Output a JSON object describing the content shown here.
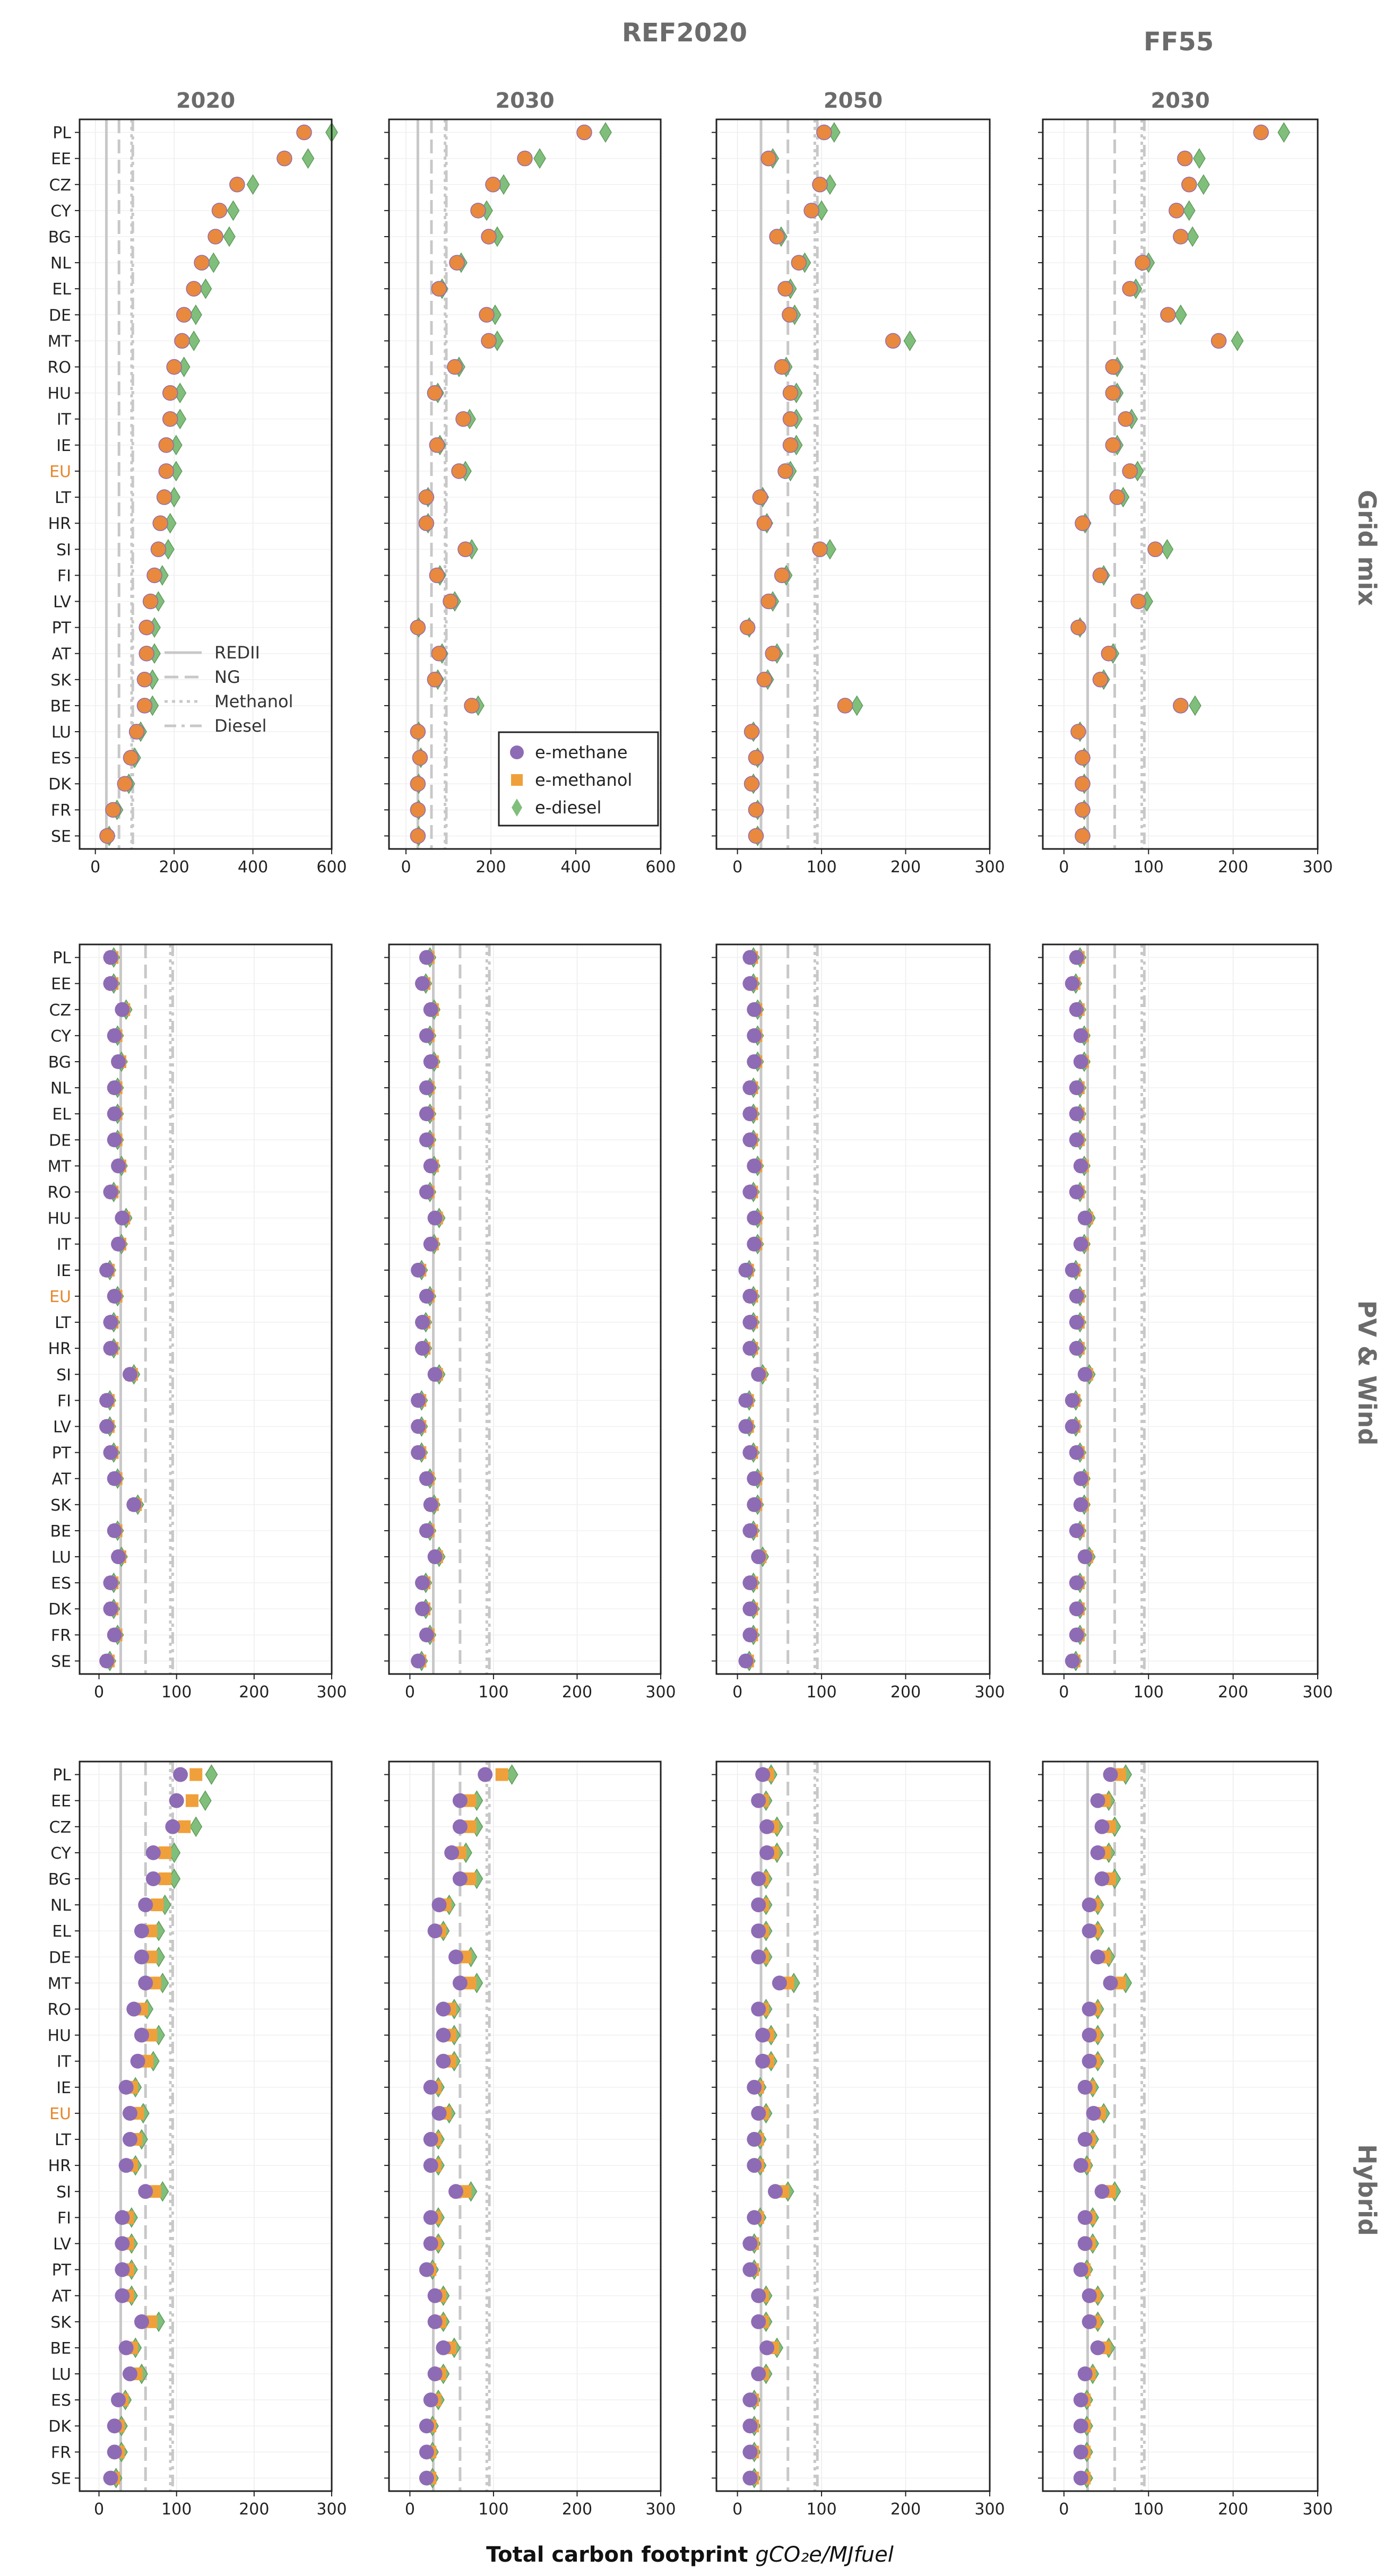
{
  "figure": {
    "scenario_labels": [
      "REF2020",
      "FF55"
    ],
    "year_labels": [
      "2020",
      "2030",
      "2050",
      "2030"
    ],
    "row_labels": [
      "Grid mix",
      "PV & Wind",
      "Hybrid"
    ],
    "xlabel": "Total carbon footprint",
    "xlabel_unit": "gCO₂e/MJfuel",
    "colors": {
      "e_methane": "#8e6bb5",
      "e_methanol": "#f0a03a",
      "e_diesel": "#7fbf7b",
      "orange_dot": "#e8893e",
      "eu_label": "#e8862a",
      "ref_lines": "#c8c8c8"
    }
  },
  "chart_data": {
    "type": "scatter",
    "countries": [
      "PL",
      "EE",
      "CZ",
      "CY",
      "BG",
      "NL",
      "EL",
      "DE",
      "MT",
      "RO",
      "HU",
      "IT",
      "IE",
      "EU",
      "LT",
      "HR",
      "SI",
      "FI",
      "LV",
      "PT",
      "AT",
      "SK",
      "BE",
      "LU",
      "ES",
      "DK",
      "FR",
      "SE"
    ],
    "series_names": [
      "e-methane",
      "e-methanol",
      "e-diesel"
    ],
    "reference_lines": [
      {
        "name": "REDII",
        "value": 28,
        "style": "solid"
      },
      {
        "name": "NG",
        "value": 60,
        "style": "dashed"
      },
      {
        "name": "Methanol",
        "value": 92,
        "style": "dotted"
      },
      {
        "name": "Diesel",
        "value": 95,
        "style": "dashdot"
      }
    ],
    "legend_lines": [
      "REDII",
      "NG",
      "Methanol",
      "Diesel"
    ],
    "legend_markers": [
      "e-methane",
      "e-methanol",
      "e-diesel"
    ],
    "panels": [
      {
        "row": "Grid mix",
        "col": "2020",
        "xlim": [
          -40,
          600
        ],
        "xticks": [
          0,
          200,
          400,
          600
        ],
        "methane": [
          525,
          475,
          355,
          310,
          300,
          265,
          245,
          220,
          215,
          195,
          185,
          185,
          175,
          175,
          170,
          160,
          155,
          145,
          135,
          125,
          125,
          120,
          120,
          100,
          85,
          70,
          40,
          25
        ],
        "methanol": [
          530,
          480,
          360,
          315,
          305,
          270,
          250,
          225,
          220,
          200,
          190,
          190,
          180,
          180,
          175,
          165,
          160,
          150,
          140,
          130,
          130,
          125,
          125,
          105,
          90,
          75,
          45,
          30
        ],
        "diesel": [
          600,
          540,
          400,
          350,
          340,
          300,
          280,
          255,
          250,
          225,
          215,
          215,
          205,
          205,
          200,
          190,
          185,
          170,
          160,
          150,
          150,
          145,
          145,
          115,
          100,
          85,
          55,
          35
        ]
      },
      {
        "row": "Grid mix",
        "col": "2030",
        "xlim": [
          -40,
          600
        ],
        "xticks": [
          0,
          200,
          400,
          600
        ],
        "methane": [
          415,
          275,
          200,
          165,
          190,
          115,
          75,
          185,
          190,
          110,
          65,
          130,
          70,
          120,
          45,
          45,
          135,
          70,
          100,
          25,
          75,
          65,
          150,
          25,
          30,
          25,
          25,
          25
        ],
        "methanol": [
          420,
          280,
          205,
          170,
          195,
          120,
          78,
          190,
          195,
          115,
          68,
          135,
          73,
          125,
          48,
          48,
          140,
          73,
          105,
          28,
          78,
          68,
          155,
          28,
          33,
          28,
          28,
          28
        ],
        "diesel": [
          470,
          315,
          230,
          190,
          215,
          130,
          85,
          210,
          215,
          125,
          75,
          150,
          80,
          140,
          52,
          52,
          155,
          80,
          115,
          30,
          85,
          75,
          170,
          30,
          35,
          30,
          30,
          30
        ],
        "legend": true
      },
      {
        "row": "Grid mix",
        "col": "2050",
        "xlim": [
          -25,
          300
        ],
        "xticks": [
          0,
          100,
          200,
          300
        ],
        "methane": [
          100,
          35,
          95,
          85,
          45,
          70,
          55,
          60,
          180,
          50,
          60,
          60,
          60,
          55,
          25,
          30,
          95,
          50,
          35,
          10,
          40,
          30,
          125,
          15,
          20,
          15,
          20,
          20
        ],
        "methanol": [
          103,
          37,
          98,
          88,
          47,
          73,
          57,
          62,
          185,
          53,
          63,
          63,
          63,
          57,
          27,
          32,
          98,
          53,
          37,
          12,
          42,
          32,
          128,
          17,
          22,
          17,
          22,
          22
        ],
        "diesel": [
          115,
          42,
          110,
          100,
          52,
          80,
          63,
          68,
          205,
          58,
          70,
          70,
          70,
          63,
          30,
          35,
          110,
          58,
          42,
          14,
          47,
          36,
          142,
          19,
          24,
          19,
          24,
          24
        ]
      },
      {
        "row": "Grid mix",
        "col": "FF55 2030",
        "xlim": [
          -25,
          300
        ],
        "xticks": [
          0,
          100,
          200,
          300
        ],
        "methane": [
          230,
          140,
          145,
          130,
          135,
          90,
          75,
          120,
          180,
          55,
          55,
          70,
          55,
          75,
          60,
          20,
          105,
          40,
          85,
          15,
          50,
          40,
          135,
          15,
          20,
          20,
          20,
          20
        ],
        "methanol": [
          233,
          143,
          148,
          133,
          138,
          93,
          78,
          123,
          183,
          58,
          58,
          73,
          58,
          78,
          63,
          22,
          108,
          43,
          88,
          17,
          53,
          43,
          138,
          17,
          22,
          22,
          22,
          22
        ],
        "diesel": [
          260,
          160,
          165,
          148,
          152,
          100,
          85,
          138,
          205,
          63,
          63,
          80,
          63,
          87,
          70,
          25,
          122,
          47,
          98,
          19,
          58,
          47,
          155,
          19,
          24,
          24,
          24,
          24
        ]
      },
      {
        "row": "PV & Wind",
        "col": "2020",
        "xlim": [
          -25,
          300
        ],
        "xticks": [
          0,
          100,
          200,
          300
        ],
        "methane": [
          15,
          15,
          30,
          20,
          25,
          20,
          20,
          20,
          25,
          15,
          30,
          25,
          10,
          20,
          15,
          15,
          40,
          10,
          10,
          15,
          20,
          45,
          20,
          25,
          15,
          15,
          20,
          10
        ],
        "methanol": [
          17,
          17,
          32,
          22,
          27,
          22,
          22,
          22,
          27,
          17,
          32,
          27,
          12,
          22,
          17,
          17,
          42,
          12,
          12,
          17,
          22,
          47,
          22,
          27,
          17,
          17,
          22,
          12
        ],
        "diesel": [
          19,
          19,
          35,
          24,
          29,
          24,
          24,
          24,
          29,
          19,
          35,
          29,
          14,
          24,
          19,
          19,
          45,
          14,
          14,
          19,
          24,
          50,
          24,
          29,
          19,
          19,
          24,
          14
        ]
      },
      {
        "row": "PV & Wind",
        "col": "2030",
        "xlim": [
          -25,
          300
        ],
        "xticks": [
          0,
          100,
          200,
          300
        ],
        "methane": [
          20,
          15,
          25,
          20,
          25,
          20,
          20,
          20,
          25,
          20,
          30,
          25,
          10,
          20,
          15,
          15,
          30,
          10,
          10,
          10,
          20,
          25,
          20,
          30,
          15,
          15,
          20,
          10
        ],
        "methanol": [
          22,
          17,
          27,
          22,
          27,
          22,
          22,
          22,
          27,
          22,
          32,
          27,
          12,
          22,
          17,
          17,
          32,
          12,
          12,
          12,
          22,
          27,
          22,
          32,
          17,
          17,
          22,
          12
        ],
        "diesel": [
          24,
          19,
          29,
          24,
          29,
          24,
          24,
          24,
          29,
          24,
          35,
          29,
          14,
          24,
          19,
          19,
          35,
          14,
          14,
          14,
          24,
          29,
          24,
          35,
          19,
          19,
          24,
          14
        ]
      },
      {
        "row": "PV & Wind",
        "col": "2050",
        "xlim": [
          -25,
          300
        ],
        "xticks": [
          0,
          100,
          200,
          300
        ],
        "methane": [
          15,
          15,
          20,
          20,
          20,
          15,
          15,
          15,
          20,
          15,
          20,
          20,
          10,
          15,
          15,
          15,
          25,
          10,
          10,
          15,
          20,
          20,
          15,
          25,
          15,
          15,
          15,
          10
        ],
        "methanol": [
          17,
          17,
          22,
          22,
          22,
          17,
          17,
          17,
          22,
          17,
          22,
          22,
          12,
          17,
          17,
          17,
          27,
          12,
          12,
          17,
          22,
          22,
          17,
          27,
          17,
          17,
          17,
          12
        ],
        "diesel": [
          19,
          19,
          24,
          24,
          24,
          19,
          19,
          19,
          24,
          19,
          24,
          24,
          14,
          19,
          19,
          19,
          30,
          14,
          14,
          19,
          24,
          24,
          19,
          30,
          19,
          19,
          19,
          14
        ]
      },
      {
        "row": "PV & Wind",
        "col": "FF55 2030",
        "xlim": [
          -25,
          300
        ],
        "xticks": [
          0,
          100,
          200,
          300
        ],
        "methane": [
          15,
          10,
          15,
          20,
          20,
          15,
          15,
          15,
          20,
          15,
          25,
          20,
          10,
          15,
          15,
          15,
          25,
          10,
          10,
          15,
          20,
          20,
          15,
          25,
          15,
          15,
          15,
          10
        ],
        "methanol": [
          17,
          12,
          17,
          22,
          22,
          17,
          17,
          17,
          22,
          17,
          27,
          22,
          12,
          17,
          17,
          17,
          27,
          12,
          12,
          17,
          22,
          22,
          17,
          27,
          17,
          17,
          17,
          12
        ],
        "diesel": [
          19,
          14,
          19,
          24,
          24,
          19,
          19,
          19,
          24,
          19,
          30,
          24,
          14,
          19,
          19,
          19,
          30,
          14,
          14,
          19,
          24,
          24,
          19,
          30,
          19,
          19,
          19,
          14
        ]
      },
      {
        "row": "Hybrid",
        "col": "2020",
        "xlim": [
          -25,
          300
        ],
        "xticks": [
          0,
          100,
          200,
          300
        ],
        "methane": [
          105,
          100,
          95,
          70,
          70,
          60,
          55,
          55,
          60,
          45,
          55,
          50,
          35,
          40,
          40,
          35,
          60,
          30,
          30,
          30,
          30,
          55,
          35,
          40,
          25,
          20,
          20,
          15
        ],
        "methanol": [
          125,
          120,
          110,
          85,
          85,
          75,
          67,
          67,
          72,
          55,
          67,
          62,
          42,
          50,
          48,
          42,
          72,
          37,
          37,
          37,
          37,
          67,
          42,
          48,
          30,
          25,
          25,
          19
        ],
        "diesel": [
          145,
          137,
          125,
          97,
          97,
          85,
          77,
          77,
          82,
          62,
          77,
          70,
          47,
          57,
          55,
          47,
          82,
          42,
          42,
          42,
          42,
          77,
          47,
          55,
          34,
          29,
          29,
          22
        ]
      },
      {
        "row": "Hybrid",
        "col": "2030",
        "xlim": [
          -25,
          300
        ],
        "xticks": [
          0,
          100,
          200,
          300
        ],
        "methane": [
          90,
          60,
          60,
          50,
          60,
          35,
          30,
          55,
          60,
          40,
          40,
          40,
          25,
          35,
          25,
          25,
          55,
          25,
          25,
          20,
          30,
          30,
          40,
          30,
          25,
          20,
          20,
          20
        ],
        "methanol": [
          110,
          72,
          72,
          60,
          72,
          42,
          36,
          66,
          72,
          48,
          48,
          48,
          30,
          42,
          30,
          30,
          66,
          30,
          30,
          24,
          36,
          36,
          48,
          36,
          30,
          24,
          24,
          24
        ],
        "diesel": [
          122,
          80,
          80,
          67,
          80,
          47,
          40,
          73,
          80,
          53,
          53,
          53,
          34,
          47,
          34,
          34,
          73,
          34,
          34,
          27,
          40,
          40,
          53,
          40,
          34,
          27,
          27,
          27
        ]
      },
      {
        "row": "Hybrid",
        "col": "2050",
        "xlim": [
          -25,
          300
        ],
        "xticks": [
          0,
          100,
          200,
          300
        ],
        "methane": [
          30,
          25,
          35,
          35,
          25,
          25,
          25,
          25,
          50,
          25,
          30,
          30,
          20,
          25,
          20,
          20,
          45,
          20,
          15,
          15,
          25,
          25,
          35,
          25,
          15,
          15,
          15,
          15
        ],
        "methanol": [
          36,
          30,
          42,
          42,
          30,
          30,
          30,
          30,
          60,
          30,
          36,
          36,
          24,
          30,
          24,
          24,
          54,
          24,
          18,
          18,
          30,
          30,
          42,
          30,
          18,
          18,
          18,
          18
        ],
        "diesel": [
          40,
          34,
          47,
          47,
          34,
          34,
          34,
          34,
          67,
          34,
          40,
          40,
          27,
          34,
          27,
          27,
          60,
          27,
          20,
          20,
          34,
          34,
          47,
          34,
          20,
          20,
          20,
          20
        ]
      },
      {
        "row": "Hybrid",
        "col": "FF55 2030",
        "xlim": [
          -25,
          300
        ],
        "xticks": [
          0,
          100,
          200,
          300
        ],
        "methane": [
          55,
          40,
          45,
          40,
          45,
          30,
          30,
          40,
          55,
          30,
          30,
          30,
          25,
          35,
          25,
          20,
          45,
          25,
          25,
          20,
          30,
          30,
          40,
          25,
          20,
          20,
          20,
          20
        ],
        "methanol": [
          66,
          48,
          54,
          48,
          54,
          36,
          36,
          48,
          66,
          36,
          36,
          36,
          30,
          42,
          30,
          24,
          54,
          30,
          30,
          24,
          36,
          36,
          48,
          30,
          24,
          24,
          24,
          24
        ],
        "diesel": [
          73,
          53,
          60,
          53,
          60,
          40,
          40,
          53,
          73,
          40,
          40,
          40,
          34,
          47,
          34,
          27,
          60,
          34,
          34,
          27,
          40,
          40,
          53,
          34,
          27,
          27,
          27,
          27
        ]
      }
    ]
  }
}
